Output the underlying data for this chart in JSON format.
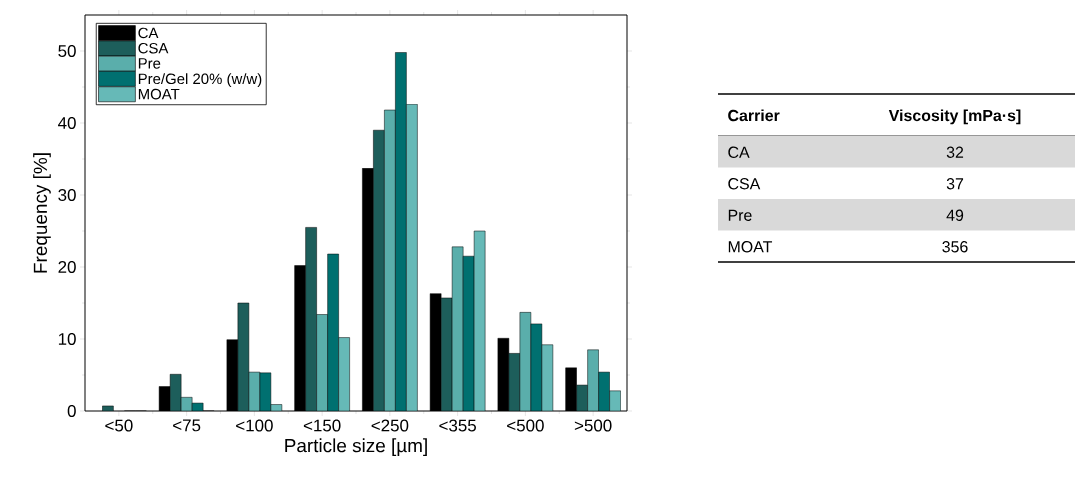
{
  "chart_data": [
    {
      "type": "bar",
      "xlabel": "Particle size [µm]",
      "ylabel": "Frequency [%]",
      "categories": [
        "<50",
        "<75",
        "<100",
        "<150",
        "<250",
        "<355",
        "<500",
        ">500"
      ],
      "series": [
        {
          "name": "CA",
          "color": "#000000",
          "values": [
            null,
            3.4,
            9.9,
            20.2,
            33.7,
            16.3,
            10.1,
            6.0
          ]
        },
        {
          "name": "CSA",
          "color": "#1d5e5b",
          "values": [
            0.7,
            5.1,
            15.0,
            25.5,
            39.0,
            15.7,
            8.0,
            3.6
          ]
        },
        {
          "name": "Pre",
          "color": "#5aaeab",
          "values": [
            null,
            1.9,
            5.4,
            13.4,
            41.8,
            22.8,
            13.7,
            8.5
          ]
        },
        {
          "name": "Pre/Gel 20% (w/w)",
          "color": "#007070",
          "values": [
            0,
            1.1,
            5.3,
            21.8,
            49.8,
            21.5,
            12.1,
            5.4
          ]
        },
        {
          "name": "MOAT",
          "color": "#66b9b7",
          "values": [
            0,
            0,
            0.9,
            10.2,
            42.6,
            25.0,
            9.2,
            2.8
          ]
        }
      ],
      "ylim": [
        0,
        55
      ],
      "yticks": [
        0,
        10,
        20,
        30,
        40,
        50
      ],
      "legend": "top left"
    },
    {
      "type": "other",
      "xlabel": "Carrier",
      "ylabel": "Viscosity [mPa·s]",
      "categories": [
        "CA",
        "CSA",
        "Pre",
        "MOAT"
      ],
      "values": [
        32,
        37,
        49,
        356
      ],
      "data_labels": true
    }
  ]
}
